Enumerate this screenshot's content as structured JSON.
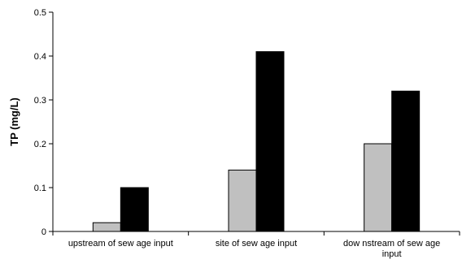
{
  "chart_data": {
    "type": "bar",
    "title": "",
    "xlabel": "",
    "ylabel": "TP (mg/L)",
    "ylim": [
      0,
      0.5
    ],
    "yticks": [
      "0",
      "0.1",
      "0.2",
      "0.3",
      "0.4",
      "0.5"
    ],
    "categories": [
      [
        "upstream of sew age input"
      ],
      [
        "site of sew age input"
      ],
      [
        "dow nstream of sew age",
        "input"
      ]
    ],
    "series": [
      {
        "values": [
          0.02,
          0.14,
          0.2
        ],
        "color": "#c0c0c0"
      },
      {
        "values": [
          0.1,
          0.41,
          0.32
        ],
        "color": "#000000"
      }
    ],
    "grid": false,
    "legend": "none"
  }
}
